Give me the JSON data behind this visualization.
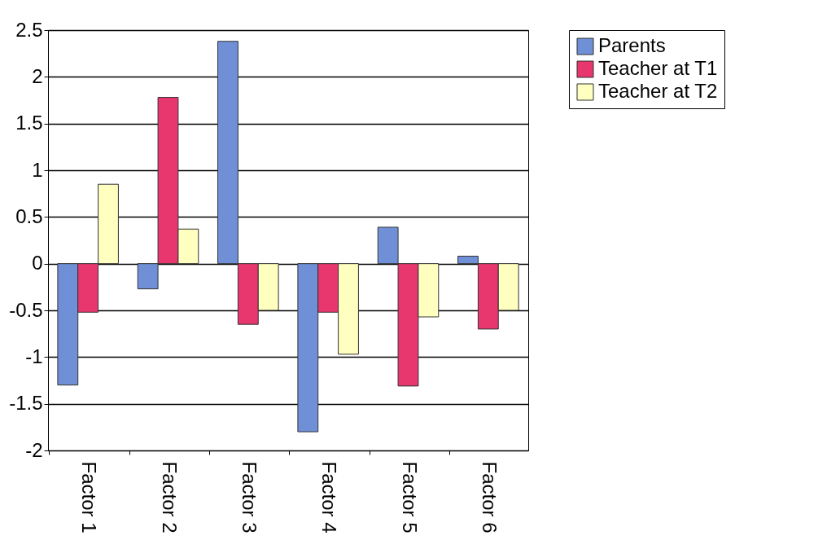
{
  "chart_data": {
    "type": "bar",
    "categories": [
      "Factor 1",
      "Factor 2",
      "Factor 3",
      "Factor 4",
      "Factor 5",
      "Factor 6"
    ],
    "series": [
      {
        "name": "Parents",
        "color": "#6f8fd6",
        "values": [
          -1.3,
          -0.27,
          2.38,
          -1.8,
          0.39,
          0.08
        ]
      },
      {
        "name": "Teacher at T1",
        "color": "#e8376f",
        "values": [
          -0.52,
          1.78,
          -0.65,
          -0.52,
          -1.31,
          -0.7
        ]
      },
      {
        "name": "Teacher at T2",
        "color": "#ffffc0",
        "values": [
          0.85,
          0.37,
          -0.5,
          -0.97,
          -0.57,
          -0.5
        ]
      }
    ],
    "ylim": [
      -2,
      2.5
    ],
    "yticks": [
      -2,
      -1.5,
      -1,
      -0.5,
      0,
      0.5,
      1,
      1.5,
      2,
      2.5
    ],
    "grid": "y",
    "legend": "right"
  }
}
